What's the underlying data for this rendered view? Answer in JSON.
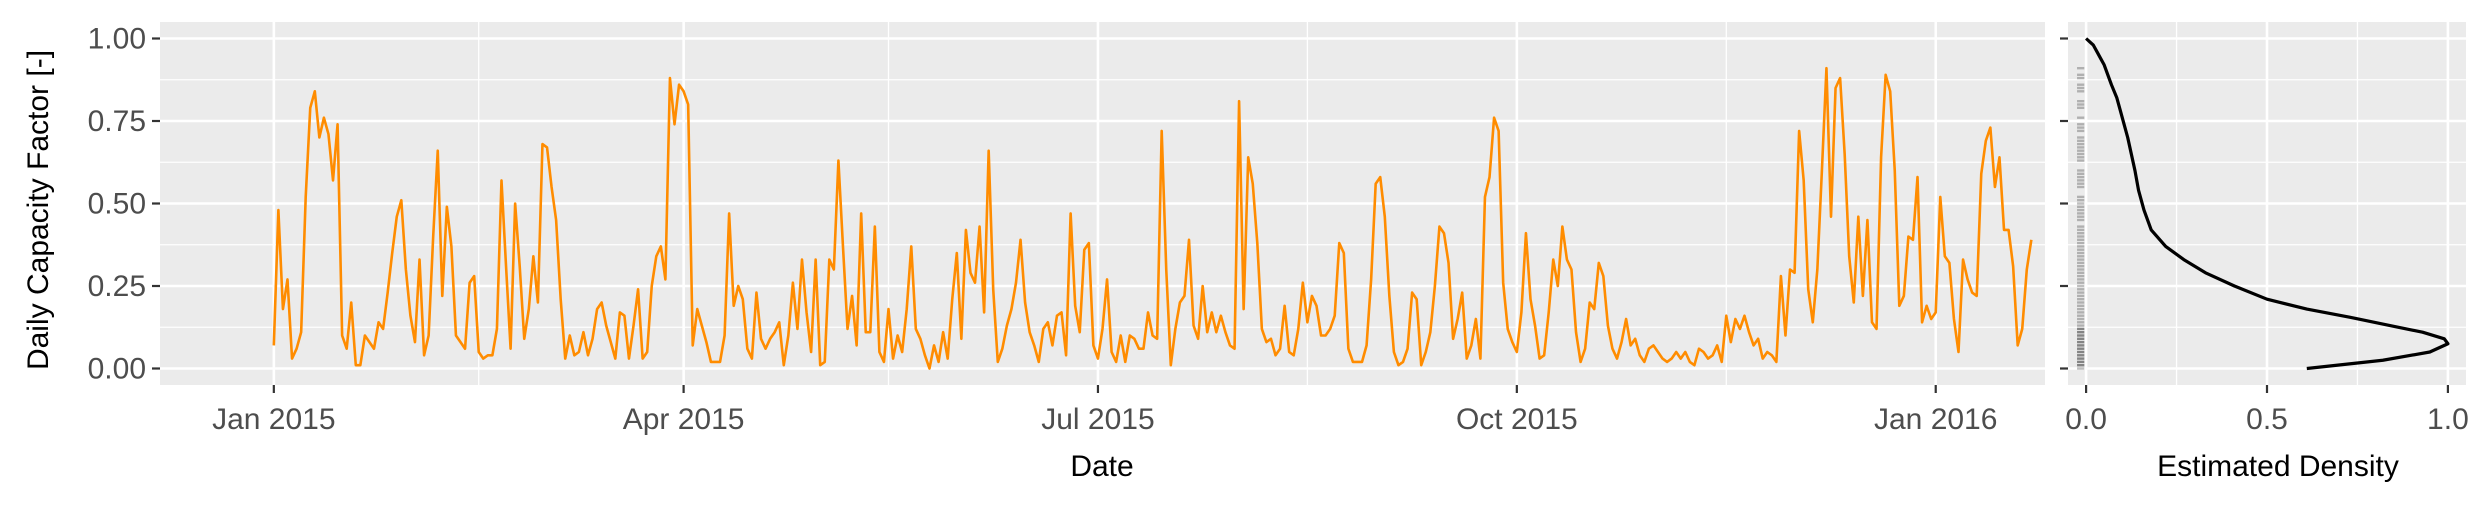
{
  "chart_data": [
    {
      "type": "line",
      "xlabel": "Date",
      "ylabel": "Daily Capacity Factor [-]",
      "xlim": [
        "2014-12-07",
        "2016-01-25"
      ],
      "ylim": [
        -0.05,
        1.05
      ],
      "x_ticks": [
        {
          "date": "2015-01-01",
          "label": "Jan 2015"
        },
        {
          "date": "2015-04-01",
          "label": "Apr 2015"
        },
        {
          "date": "2015-07-01",
          "label": "Jul 2015"
        },
        {
          "date": "2015-10-01",
          "label": "Oct 2015"
        },
        {
          "date": "2016-01-01",
          "label": "Jan 2016"
        }
      ],
      "x_minor_ticks": [
        "2015-02-15",
        "2015-05-16",
        "2015-08-16",
        "2015-11-16"
      ],
      "y_ticks": [
        {
          "value": 0,
          "label": "0.00"
        },
        {
          "value": 0.25,
          "label": "0.25"
        },
        {
          "value": 0.5,
          "label": "0.50"
        },
        {
          "value": 0.75,
          "label": "0.75"
        },
        {
          "value": 1,
          "label": "1.00"
        }
      ],
      "grid": true,
      "line_color": "#ff8c00",
      "series": [
        {
          "start_date": "2015-01-01",
          "step_days": 1,
          "values": [
            0.07,
            0.48,
            0.18,
            0.27,
            0.03,
            0.06,
            0.11,
            0.52,
            0.79,
            0.84,
            0.7,
            0.76,
            0.71,
            0.57,
            0.74,
            0.1,
            0.06,
            0.2,
            0.01,
            0.01,
            0.1,
            0.08,
            0.06,
            0.14,
            0.12,
            0.23,
            0.35,
            0.46,
            0.51,
            0.3,
            0.16,
            0.08,
            0.33,
            0.04,
            0.1,
            0.4,
            0.66,
            0.22,
            0.49,
            0.37,
            0.1,
            0.08,
            0.06,
            0.26,
            0.28,
            0.05,
            0.03,
            0.04,
            0.04,
            0.12,
            0.57,
            0.31,
            0.06,
            0.5,
            0.31,
            0.09,
            0.18,
            0.34,
            0.2,
            0.68,
            0.67,
            0.55,
            0.45,
            0.21,
            0.03,
            0.1,
            0.04,
            0.05,
            0.11,
            0.04,
            0.09,
            0.18,
            0.2,
            0.13,
            0.08,
            0.03,
            0.17,
            0.16,
            0.03,
            0.13,
            0.24,
            0.03,
            0.05,
            0.25,
            0.34,
            0.37,
            0.27,
            0.88,
            0.74,
            0.86,
            0.84,
            0.8,
            0.07,
            0.18,
            0.13,
            0.08,
            0.02,
            0.02,
            0.02,
            0.1,
            0.47,
            0.19,
            0.25,
            0.21,
            0.06,
            0.03,
            0.23,
            0.09,
            0.06,
            0.09,
            0.11,
            0.14,
            0.01,
            0.1,
            0.26,
            0.12,
            0.33,
            0.17,
            0.05,
            0.33,
            0.01,
            0.02,
            0.33,
            0.3,
            0.63,
            0.37,
            0.12,
            0.22,
            0.07,
            0.47,
            0.11,
            0.11,
            0.43,
            0.05,
            0.02,
            0.18,
            0.03,
            0.1,
            0.05,
            0.18,
            0.37,
            0.12,
            0.09,
            0.04,
            0.0,
            0.07,
            0.02,
            0.11,
            0.03,
            0.21,
            0.35,
            0.09,
            0.42,
            0.29,
            0.26,
            0.43,
            0.17,
            0.66,
            0.24,
            0.02,
            0.06,
            0.13,
            0.18,
            0.26,
            0.39,
            0.2,
            0.11,
            0.07,
            0.02,
            0.12,
            0.14,
            0.07,
            0.16,
            0.17,
            0.04,
            0.47,
            0.19,
            0.11,
            0.36,
            0.38,
            0.07,
            0.03,
            0.12,
            0.27,
            0.05,
            0.02,
            0.1,
            0.02,
            0.1,
            0.09,
            0.06,
            0.06,
            0.17,
            0.1,
            0.09,
            0.72,
            0.3,
            0.01,
            0.12,
            0.2,
            0.22,
            0.39,
            0.13,
            0.09,
            0.25,
            0.11,
            0.17,
            0.11,
            0.16,
            0.11,
            0.07,
            0.06,
            0.81,
            0.18,
            0.64,
            0.56,
            0.38,
            0.12,
            0.08,
            0.09,
            0.04,
            0.06,
            0.19,
            0.05,
            0.04,
            0.12,
            0.26,
            0.14,
            0.22,
            0.19,
            0.1,
            0.1,
            0.12,
            0.16,
            0.38,
            0.35,
            0.06,
            0.02,
            0.02,
            0.02,
            0.07,
            0.27,
            0.56,
            0.58,
            0.46,
            0.22,
            0.05,
            0.01,
            0.02,
            0.06,
            0.23,
            0.21,
            0.01,
            0.05,
            0.11,
            0.25,
            0.43,
            0.41,
            0.32,
            0.09,
            0.15,
            0.23,
            0.03,
            0.07,
            0.15,
            0.03,
            0.52,
            0.58,
            0.76,
            0.72,
            0.26,
            0.12,
            0.08,
            0.05,
            0.17,
            0.41,
            0.21,
            0.13,
            0.03,
            0.04,
            0.17,
            0.33,
            0.25,
            0.43,
            0.33,
            0.3,
            0.11,
            0.02,
            0.06,
            0.2,
            0.18,
            0.32,
            0.28,
            0.13,
            0.06,
            0.03,
            0.08,
            0.15,
            0.07,
            0.09,
            0.04,
            0.02,
            0.06,
            0.07,
            0.05,
            0.03,
            0.02,
            0.03,
            0.05,
            0.03,
            0.05,
            0.02,
            0.01,
            0.06,
            0.05,
            0.03,
            0.04,
            0.07,
            0.02,
            0.16,
            0.08,
            0.15,
            0.12,
            0.16,
            0.11,
            0.07,
            0.09,
            0.03,
            0.05,
            0.04,
            0.02,
            0.28,
            0.1,
            0.3,
            0.29,
            0.72,
            0.57,
            0.24,
            0.14,
            0.3,
            0.6,
            0.91,
            0.46,
            0.85,
            0.88,
            0.65,
            0.34,
            0.2,
            0.46,
            0.22,
            0.45,
            0.14,
            0.12,
            0.64,
            0.89,
            0.84,
            0.6,
            0.19,
            0.22,
            0.4,
            0.39,
            0.58,
            0.14,
            0.19,
            0.15,
            0.17,
            0.52,
            0.34,
            0.32,
            0.15,
            0.05,
            0.33,
            0.27,
            0.23,
            0.22,
            0.59,
            0.69,
            0.73,
            0.55,
            0.64,
            0.42,
            0.42,
            0.31,
            0.07,
            0.12,
            0.3,
            0.39
          ]
        }
      ]
    },
    {
      "type": "line",
      "title": "",
      "xlabel": "Estimated Density",
      "ylabel": "",
      "xlim": [
        -0.05,
        1.05
      ],
      "ylim": [
        -0.05,
        1.05
      ],
      "x_ticks": [
        {
          "value": 0,
          "label": "0.0"
        },
        {
          "value": 0.5,
          "label": "0.5"
        },
        {
          "value": 1,
          "label": "1.0"
        }
      ],
      "grid": true,
      "line_color": "#000000",
      "series": [
        {
          "density": [
            0.61,
            0.82,
            0.95,
            1.0,
            0.99,
            0.93,
            0.84,
            0.73,
            0.61,
            0.5,
            0.41,
            0.33,
            0.27,
            0.22,
            0.18,
            0.16,
            0.145,
            0.135,
            0.125,
            0.115,
            0.105,
            0.095,
            0.085,
            0.07,
            0.06,
            0.05,
            0.04,
            0.03,
            0.02,
            0.01,
            0.0
          ],
          "values": [
            0.0,
            0.025,
            0.05,
            0.075,
            0.09,
            0.11,
            0.13,
            0.155,
            0.18,
            0.21,
            0.25,
            0.29,
            0.33,
            0.37,
            0.42,
            0.48,
            0.54,
            0.6,
            0.65,
            0.7,
            0.74,
            0.78,
            0.82,
            0.86,
            0.89,
            0.92,
            0.94,
            0.96,
            0.98,
            0.99,
            1.0
          ]
        }
      ],
      "rug": {
        "values": [
          0.0,
          0.01,
          0.01,
          0.02,
          0.02,
          0.03,
          0.03,
          0.04,
          0.04,
          0.05,
          0.05,
          0.06,
          0.06,
          0.07,
          0.07,
          0.08,
          0.08,
          0.09,
          0.09,
          0.1,
          0.1,
          0.11,
          0.11,
          0.12,
          0.12,
          0.13,
          0.14,
          0.15,
          0.16,
          0.17,
          0.18,
          0.19,
          0.2,
          0.21,
          0.22,
          0.23,
          0.24,
          0.25,
          0.26,
          0.27,
          0.28,
          0.29,
          0.3,
          0.31,
          0.32,
          0.33,
          0.34,
          0.35,
          0.36,
          0.37,
          0.38,
          0.39,
          0.4,
          0.41,
          0.42,
          0.43,
          0.45,
          0.46,
          0.47,
          0.48,
          0.49,
          0.5,
          0.51,
          0.52,
          0.55,
          0.56,
          0.57,
          0.58,
          0.59,
          0.6,
          0.63,
          0.64,
          0.65,
          0.66,
          0.67,
          0.68,
          0.69,
          0.7,
          0.72,
          0.73,
          0.74,
          0.76,
          0.79,
          0.8,
          0.81,
          0.84,
          0.85,
          0.86,
          0.88,
          0.89,
          0.91
        ]
      }
    }
  ]
}
